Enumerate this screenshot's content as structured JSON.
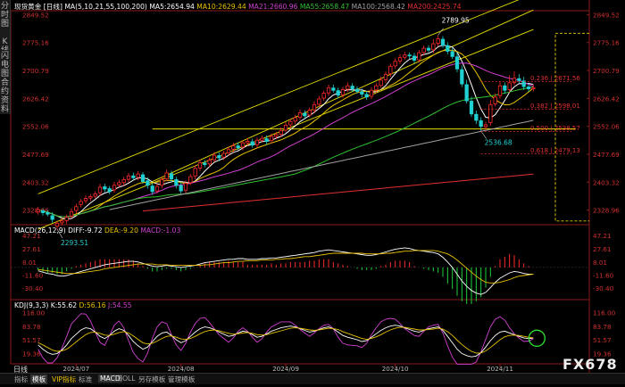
{
  "sidebar": {
    "tabs": [
      {
        "label": "分时图",
        "top": 0,
        "height": 40
      },
      {
        "label": "K线图",
        "top": 40,
        "height": 40
      },
      {
        "label": "闪电图",
        "top": 56,
        "height": 30
      },
      {
        "label": "合约资料",
        "top": 86,
        "height": 40
      }
    ]
  },
  "header": {
    "symbol": "现货黄金",
    "period": "[日线]",
    "ma_label": "MA(5,10,21,55,100,200)",
    "ma_values": [
      {
        "label": "MA5:2654.94",
        "color": "#ffffff"
      },
      {
        "label": "MA10:2629.44",
        "color": "#e8c000"
      },
      {
        "label": "MA21:2660.96",
        "color": "#d040d0"
      },
      {
        "label": "MA55:2658.47",
        "color": "#30c030"
      },
      {
        "label": "MA100:2568.42",
        "color": "#a0a0a0"
      },
      {
        "label": "MA200:2425.74",
        "color": "#e03030"
      }
    ]
  },
  "macd_header": {
    "label": "MACD(26,12,9)",
    "diff": "DIFF:-9.72",
    "dea": "DEA:-9.20",
    "macd": "MACD:-1.03"
  },
  "kdj_header": {
    "label": "KDJ(9,3,3)",
    "k": "K:55.62",
    "d": "D:56.16",
    "j": "J:54.55"
  },
  "bottom_bar": {
    "day_button": "日线",
    "items": [
      {
        "label": "指标",
        "state": "normal"
      },
      {
        "label": "模板",
        "state": "active"
      },
      {
        "label": "VIP指标",
        "state": "hot"
      },
      {
        "label": "标准",
        "state": "normal"
      },
      {
        "label": "MACD",
        "state": "active"
      },
      {
        "label": "BOLL",
        "state": "normal"
      },
      {
        "label": "另存模板",
        "state": "normal"
      },
      {
        "label": "管理模板",
        "state": "normal"
      }
    ]
  },
  "logo": "FX678",
  "chart_data": [
    {
      "type": "candlestick",
      "title": "现货黄金 [日线]",
      "y_ticks": [
        2849.52,
        2775.16,
        2700.79,
        2626.42,
        2552.06,
        2477.69,
        2403.32,
        2328.96
      ],
      "ylim": [
        2290,
        2860
      ],
      "x_ticks": [
        "2024/07",
        "2024/08",
        "2024/09",
        "2024/10",
        "2024/11"
      ],
      "annotations": [
        {
          "text": "2789.95",
          "kind": "high"
        },
        {
          "text": "2536.68",
          "kind": "low"
        },
        {
          "text": "2293.51",
          "kind": "low"
        }
      ],
      "fib_levels": [
        {
          "text": "0.236 | 2671.56",
          "price": 2671.56
        },
        {
          "text": "0.382 | 2598.01",
          "price": 2598.01
        },
        {
          "text": "0.500 | 2538.57",
          "price": 2538.57
        },
        {
          "text": "0.618 | 2479.13",
          "price": 2479.13
        }
      ],
      "horizontal_line": 2545,
      "closes": [
        2330,
        2322,
        2318,
        2304,
        2294,
        2300,
        2310,
        2325,
        2338,
        2352,
        2360,
        2365,
        2372,
        2390,
        2385,
        2378,
        2395,
        2402,
        2410,
        2420,
        2415,
        2425,
        2405,
        2395,
        2378,
        2392,
        2410,
        2428,
        2412,
        2395,
        2380,
        2400,
        2418,
        2440,
        2455,
        2450,
        2462,
        2475,
        2468,
        2480,
        2490,
        2500,
        2495,
        2508,
        2512,
        2502,
        2515,
        2520,
        2512,
        2525,
        2530,
        2540,
        2555,
        2565,
        2575,
        2588,
        2580,
        2595,
        2610,
        2625,
        2640,
        2655,
        2648,
        2635,
        2650,
        2660,
        2652,
        2645,
        2638,
        2630,
        2648,
        2660,
        2675,
        2690,
        2712,
        2725,
        2735,
        2742,
        2740,
        2728,
        2748,
        2760,
        2755,
        2772,
        2785,
        2768,
        2752,
        2738,
        2705,
        2665,
        2620,
        2585,
        2568,
        2552,
        2556,
        2610,
        2630,
        2660,
        2648,
        2668,
        2680,
        2674,
        2658,
        2652,
        2655
      ],
      "opens_offset": [
        -6,
        5,
        4,
        10,
        -8,
        -5,
        -9,
        -12,
        -10,
        -8,
        -6,
        -4,
        -6,
        -15,
        6,
        8,
        -12,
        -6,
        -8,
        -9,
        5,
        -9,
        18,
        12,
        15,
        -12,
        -15,
        -16,
        14,
        15,
        14,
        -18,
        -16,
        -20,
        -14,
        4,
        -10,
        -12,
        6,
        -10,
        -9,
        -9,
        5,
        -11,
        -4,
        9,
        -12,
        -5,
        7,
        -11,
        -5,
        -9,
        -13,
        -9,
        -9,
        -12,
        7,
        -13,
        -14,
        -14,
        -13,
        -14,
        6,
        12,
        -14,
        -9,
        7,
        6,
        6,
        7,
        -16,
        -11,
        -14,
        -14,
        -20,
        -12,
        -9,
        -6,
        2,
        11,
        -19,
        -11,
        5,
        -16,
        -12,
        16,
        15,
        13,
        32,
        38,
        43,
        34,
        16,
        15,
        -5,
        -48,
        -18,
        -26,
        12,
        -18,
        -11,
        5,
        15,
        5,
        -3
      ],
      "highs_extra": [
        8,
        6,
        7,
        9,
        6,
        8,
        7,
        9,
        8,
        7,
        8,
        6,
        7,
        9,
        8,
        7,
        9,
        8,
        7,
        8,
        9,
        8,
        7,
        9,
        8,
        7,
        8,
        9,
        8,
        7,
        9,
        8,
        7,
        8,
        9,
        8,
        7,
        9,
        8,
        7,
        8,
        9,
        8,
        7,
        9,
        8,
        7,
        8,
        9,
        8,
        7,
        9,
        8,
        7,
        8,
        9,
        8,
        7,
        9,
        8,
        7,
        8,
        9,
        8,
        7,
        9,
        8,
        7,
        8,
        9,
        8,
        7,
        9,
        8,
        7,
        8,
        9,
        8,
        7,
        9,
        8,
        7,
        8,
        12,
        10,
        8,
        9,
        10,
        12,
        11,
        13,
        12,
        10,
        9,
        8,
        12,
        10,
        11,
        9,
        20,
        18,
        12,
        11,
        9,
        8
      ],
      "lows_extra": [
        7,
        8,
        6,
        9,
        8,
        7,
        8,
        6,
        9,
        8,
        7,
        8,
        6,
        9,
        8,
        7,
        8,
        6,
        9,
        8,
        7,
        8,
        6,
        9,
        8,
        7,
        8,
        6,
        9,
        8,
        7,
        8,
        6,
        9,
        8,
        7,
        8,
        6,
        9,
        8,
        7,
        8,
        6,
        9,
        8,
        7,
        8,
        6,
        9,
        8,
        7,
        8,
        6,
        9,
        8,
        7,
        8,
        6,
        9,
        8,
        7,
        8,
        6,
        9,
        8,
        7,
        8,
        6,
        9,
        8,
        7,
        8,
        6,
        9,
        8,
        7,
        8,
        6,
        9,
        8,
        7,
        8,
        6,
        9,
        8,
        7,
        8,
        6,
        9,
        8,
        7,
        8,
        10,
        12,
        9,
        8,
        7,
        8,
        9,
        8,
        7,
        8,
        9,
        8,
        7
      ],
      "series": [
        {
          "name": "MA5",
          "color": "#ffffff",
          "period": 5
        },
        {
          "name": "MA10",
          "color": "#e8c000",
          "period": 10
        },
        {
          "name": "MA21",
          "color": "#d040d0",
          "period": 21
        },
        {
          "name": "MA55",
          "color": "#30c030",
          "period": 55
        },
        {
          "name": "MA100",
          "color": "#a0a0a0",
          "base": [
            2290,
            2568
          ]
        },
        {
          "name": "MA200",
          "color": "#e03030",
          "base": [
            2300,
            2425
          ]
        }
      ],
      "trend_channel": {
        "upper": [
          [
            0,
            2372
          ],
          [
            104,
            2905
          ]
        ],
        "lower": [
          [
            0,
            2278
          ],
          [
            104,
            2810
          ]
        ],
        "middle": [
          [
            24,
            2405
          ],
          [
            104,
            2862
          ]
        ]
      }
    },
    {
      "type": "bar+line",
      "title": "MACD(26,12,9)",
      "y_ticks": [
        47.21,
        27.61,
        8.01,
        -11.6,
        -30.4
      ],
      "ylim": [
        -45,
        50
      ],
      "series": [
        {
          "name": "DIFF",
          "color": "#ffffff"
        },
        {
          "name": "DEA",
          "color": "#e8c000"
        },
        {
          "name": "MACD",
          "color": "#d040d0"
        }
      ],
      "diff": [
        -5,
        -7,
        -9,
        -10,
        -12,
        -13,
        -12,
        -10,
        -8,
        -6,
        -4,
        -2,
        0,
        2,
        4,
        5,
        6,
        7,
        8,
        9,
        9,
        8,
        6,
        4,
        2,
        1,
        2,
        3,
        2,
        1,
        0,
        1,
        2,
        3,
        5,
        7,
        8,
        9,
        10,
        11,
        12,
        12,
        13,
        13,
        12,
        12,
        12,
        13,
        13,
        14,
        14,
        15,
        16,
        17,
        18,
        19,
        20,
        21,
        22,
        24,
        25,
        26,
        25,
        24,
        23,
        22,
        21,
        20,
        19,
        18,
        18,
        19,
        21,
        23,
        25,
        27,
        28,
        29,
        28,
        26,
        25,
        24,
        23,
        22,
        20,
        15,
        8,
        0,
        -10,
        -20,
        -28,
        -34,
        -38,
        -40,
        -37,
        -30,
        -22,
        -16,
        -12,
        -8,
        -6,
        -7,
        -9,
        -10,
        -10
      ],
      "dea": [
        -3,
        -4,
        -5,
        -6,
        -7,
        -8,
        -9,
        -9,
        -9,
        -8,
        -7,
        -6,
        -5,
        -4,
        -2,
        -1,
        0,
        1,
        2,
        3,
        4,
        5,
        5,
        5,
        5,
        4,
        4,
        4,
        3,
        3,
        3,
        3,
        3,
        3,
        3,
        4,
        4,
        5,
        6,
        7,
        7,
        8,
        9,
        9,
        10,
        10,
        10,
        11,
        11,
        11,
        12,
        12,
        13,
        13,
        14,
        15,
        16,
        16,
        17,
        18,
        19,
        20,
        21,
        21,
        21,
        21,
        21,
        21,
        21,
        20,
        20,
        20,
        20,
        21,
        21,
        22,
        23,
        24,
        24,
        25,
        25,
        25,
        25,
        25,
        24,
        22,
        20,
        16,
        11,
        5,
        -1,
        -7,
        -13,
        -18,
        -22,
        -23,
        -23,
        -22,
        -20,
        -18,
        -15,
        -13,
        -12,
        -11,
        -10
      ]
    },
    {
      "type": "line",
      "title": "KDJ(9,3,3)",
      "y_ticks": [
        116.0,
        83.78,
        51.57,
        19.36
      ],
      "ylim": [
        0,
        125
      ],
      "series": [
        {
          "name": "K",
          "color": "#ffffff"
        },
        {
          "name": "D",
          "color": "#e8c000"
        },
        {
          "name": "J",
          "color": "#d040d0"
        }
      ],
      "k": [
        40,
        30,
        22,
        18,
        20,
        28,
        40,
        55,
        65,
        75,
        80,
        78,
        70,
        60,
        55,
        62,
        72,
        78,
        74,
        62,
        48,
        38,
        30,
        35,
        48,
        60,
        68,
        70,
        62,
        52,
        45,
        50,
        60,
        70,
        78,
        82,
        80,
        76,
        70,
        65,
        60,
        62,
        68,
        72,
        70,
        64,
        58,
        60,
        66,
        72,
        76,
        80,
        82,
        84,
        82,
        78,
        74,
        70,
        72,
        76,
        80,
        82,
        78,
        70,
        62,
        58,
        55,
        52,
        48,
        50,
        58,
        66,
        74,
        80,
        84,
        86,
        84,
        80,
        76,
        72,
        70,
        74,
        78,
        80,
        82,
        74,
        60,
        45,
        30,
        20,
        15,
        12,
        14,
        22,
        35,
        50,
        62,
        70,
        72,
        68,
        64,
        60,
        56,
        55,
        55.6
      ],
      "d": [
        45,
        40,
        34,
        28,
        25,
        26,
        30,
        38,
        47,
        56,
        64,
        69,
        70,
        67,
        63,
        62,
        65,
        69,
        71,
        68,
        61,
        53,
        45,
        42,
        44,
        49,
        55,
        60,
        61,
        58,
        54,
        53,
        55,
        60,
        66,
        71,
        74,
        75,
        73,
        70,
        67,
        65,
        66,
        68,
        69,
        67,
        64,
        63,
        64,
        67,
        70,
        73,
        76,
        79,
        80,
        79,
        77,
        75,
        74,
        75,
        77,
        79,
        78,
        76,
        71,
        67,
        63,
        59,
        55,
        53,
        55,
        59,
        64,
        70,
        75,
        79,
        81,
        81,
        79,
        77,
        75,
        75,
        76,
        77,
        79,
        77,
        71,
        62,
        51,
        41,
        32,
        25,
        21,
        21,
        26,
        34,
        43,
        52,
        59,
        62,
        63,
        62,
        60,
        58,
        56.2
      ]
    }
  ]
}
